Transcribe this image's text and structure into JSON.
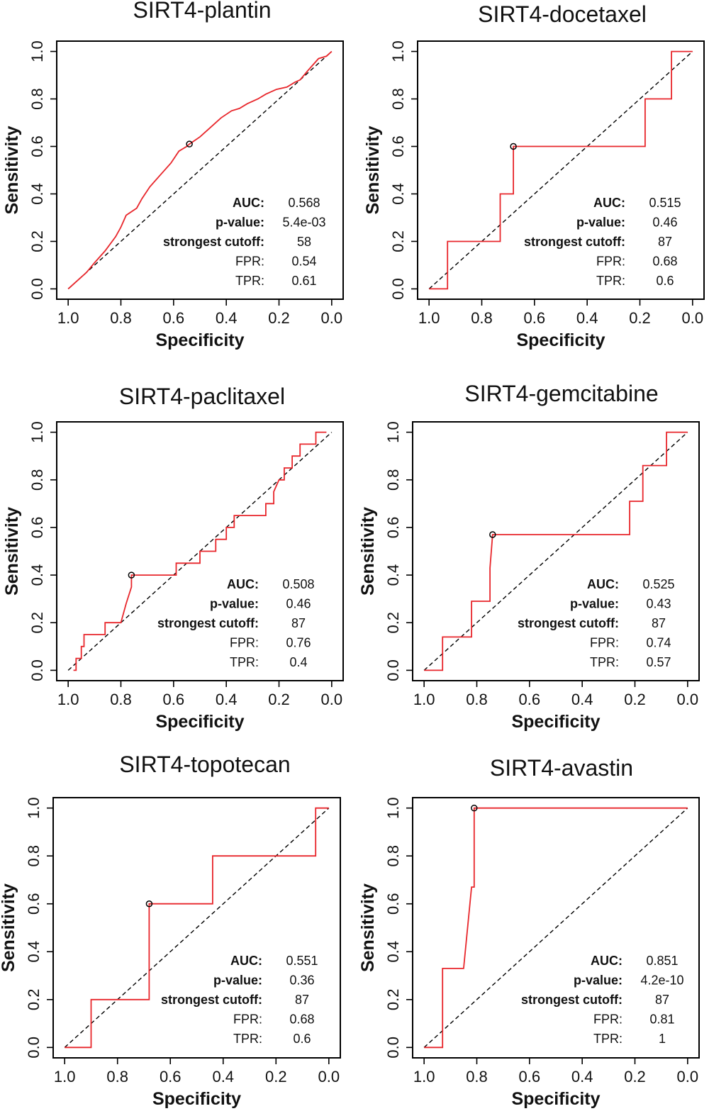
{
  "figure": {
    "description_colors": {
      "roc": "#e8262b",
      "diagonal": "#000000",
      "frame": "#000000"
    }
  },
  "chart_data": [
    {
      "type": "line",
      "title": "SIRT4-plantin",
      "xlabel": "Specificity",
      "ylabel": "Sensitivity",
      "xlim": [
        1.0,
        0.0
      ],
      "ylim": [
        0.0,
        1.0
      ],
      "xticks": [
        "1.0",
        "0.8",
        "0.6",
        "0.4",
        "0.2",
        "0.0"
      ],
      "yticks": [
        "0.0",
        "0.2",
        "0.4",
        "0.6",
        "0.8",
        "1.0"
      ],
      "series": [
        {
          "name": "ROC",
          "specificity": [
            1.0,
            0.97,
            0.93,
            0.9,
            0.86,
            0.82,
            0.8,
            0.78,
            0.74,
            0.72,
            0.69,
            0.65,
            0.61,
            0.58,
            0.55,
            0.54,
            0.5,
            0.46,
            0.42,
            0.38,
            0.35,
            0.32,
            0.28,
            0.25,
            0.21,
            0.17,
            0.14,
            0.12,
            0.09,
            0.05,
            0.02,
            0.0
          ],
          "sensitivity": [
            0.0,
            0.03,
            0.07,
            0.11,
            0.16,
            0.22,
            0.26,
            0.31,
            0.34,
            0.38,
            0.43,
            0.48,
            0.53,
            0.58,
            0.6,
            0.61,
            0.64,
            0.68,
            0.72,
            0.75,
            0.76,
            0.78,
            0.8,
            0.82,
            0.84,
            0.85,
            0.87,
            0.88,
            0.92,
            0.97,
            0.98,
            1.0
          ]
        }
      ],
      "cutoff_point": {
        "specificity": 0.54,
        "sensitivity": 0.61
      },
      "stats": [
        {
          "key": "AUC:",
          "value": "0.568",
          "bold": true
        },
        {
          "key": "p-value:",
          "value": "5.4e-03",
          "bold": true
        },
        {
          "key": "strongest cutoff:",
          "value": "58",
          "bold": true
        },
        {
          "key": "FPR:",
          "value": "0.54",
          "bold": false
        },
        {
          "key": "TPR:",
          "value": "0.61",
          "bold": false
        }
      ]
    },
    {
      "type": "line",
      "title": "SIRT4-docetaxel",
      "xlabel": "Specificity",
      "ylabel": "Sensitivity",
      "xlim": [
        1.0,
        0.0
      ],
      "ylim": [
        0.0,
        1.0
      ],
      "xticks": [
        "1.0",
        "0.8",
        "0.6",
        "0.4",
        "0.2",
        "0.0"
      ],
      "yticks": [
        "0.0",
        "0.2",
        "0.4",
        "0.6",
        "0.8",
        "1.0"
      ],
      "series": [
        {
          "name": "ROC",
          "specificity": [
            1.0,
            0.93,
            0.93,
            0.73,
            0.73,
            0.68,
            0.68,
            0.18,
            0.18,
            0.08,
            0.08,
            0.0
          ],
          "sensitivity": [
            0.0,
            0.0,
            0.2,
            0.2,
            0.4,
            0.4,
            0.6,
            0.6,
            0.8,
            0.8,
            1.0,
            1.0
          ]
        }
      ],
      "cutoff_point": {
        "specificity": 0.68,
        "sensitivity": 0.6
      },
      "stats": [
        {
          "key": "AUC:",
          "value": "0.515",
          "bold": true
        },
        {
          "key": "p-value:",
          "value": "0.46",
          "bold": true
        },
        {
          "key": "strongest cutoff:",
          "value": "87",
          "bold": true
        },
        {
          "key": "FPR:",
          "value": "0.68",
          "bold": false
        },
        {
          "key": "TPR:",
          "value": "0.6",
          "bold": false
        }
      ]
    },
    {
      "type": "line",
      "title": "SIRT4-paclitaxel",
      "xlabel": "Specificity",
      "ylabel": "Sensitivity",
      "xlim": [
        1.0,
        0.0
      ],
      "ylim": [
        0.0,
        1.0
      ],
      "xticks": [
        "1.0",
        "0.8",
        "0.6",
        "0.4",
        "0.2",
        "0.0"
      ],
      "yticks": [
        "0.0",
        "0.2",
        "0.4",
        "0.6",
        "0.8",
        "1.0"
      ],
      "series": [
        {
          "name": "ROC",
          "specificity": [
            0.98,
            0.97,
            0.97,
            0.95,
            0.95,
            0.94,
            0.94,
            0.86,
            0.86,
            0.8,
            0.78,
            0.76,
            0.76,
            0.59,
            0.59,
            0.5,
            0.5,
            0.44,
            0.44,
            0.4,
            0.4,
            0.37,
            0.37,
            0.25,
            0.25,
            0.22,
            0.22,
            0.2,
            0.18,
            0.18,
            0.15,
            0.15,
            0.12,
            0.12,
            0.06,
            0.06,
            0.05,
            0.04,
            0.02
          ],
          "sensitivity": [
            0.0,
            0.0,
            0.05,
            0.05,
            0.1,
            0.1,
            0.15,
            0.15,
            0.2,
            0.2,
            0.28,
            0.35,
            0.4,
            0.4,
            0.45,
            0.45,
            0.5,
            0.5,
            0.55,
            0.55,
            0.6,
            0.6,
            0.65,
            0.65,
            0.7,
            0.7,
            0.75,
            0.8,
            0.8,
            0.85,
            0.85,
            0.9,
            0.9,
            0.95,
            0.95,
            1.0,
            1.0,
            1.0,
            1.0
          ]
        }
      ],
      "cutoff_point": {
        "specificity": 0.76,
        "sensitivity": 0.4
      },
      "stats": [
        {
          "key": "AUC:",
          "value": "0.508",
          "bold": true
        },
        {
          "key": "p-value:",
          "value": "0.46",
          "bold": true
        },
        {
          "key": "strongest cutoff:",
          "value": "87",
          "bold": true
        },
        {
          "key": "FPR:",
          "value": "0.76",
          "bold": false
        },
        {
          "key": "TPR:",
          "value": "0.4",
          "bold": false
        }
      ]
    },
    {
      "type": "line",
      "title": "SIRT4-gemcitabine",
      "xlabel": "Specificity",
      "ylabel": "Sensitivity",
      "xlim": [
        1.0,
        0.0
      ],
      "ylim": [
        0.0,
        1.0
      ],
      "xticks": [
        "1.0",
        "0.8",
        "0.6",
        "0.4",
        "0.2",
        "0.0"
      ],
      "yticks": [
        "0.0",
        "0.2",
        "0.4",
        "0.6",
        "0.8",
        "1.0"
      ],
      "series": [
        {
          "name": "ROC",
          "specificity": [
            1.0,
            0.93,
            0.93,
            0.82,
            0.82,
            0.75,
            0.75,
            0.74,
            0.22,
            0.22,
            0.17,
            0.17,
            0.08,
            0.08,
            0.0
          ],
          "sensitivity": [
            0.0,
            0.0,
            0.14,
            0.14,
            0.29,
            0.29,
            0.43,
            0.57,
            0.57,
            0.71,
            0.71,
            0.86,
            0.86,
            1.0,
            1.0
          ]
        }
      ],
      "cutoff_point": {
        "specificity": 0.74,
        "sensitivity": 0.57
      },
      "stats": [
        {
          "key": "AUC:",
          "value": "0.525",
          "bold": true
        },
        {
          "key": "p-value:",
          "value": "0.43",
          "bold": true
        },
        {
          "key": "strongest cutoff:",
          "value": "87",
          "bold": true
        },
        {
          "key": "FPR:",
          "value": "0.74",
          "bold": false
        },
        {
          "key": "TPR:",
          "value": "0.57",
          "bold": false
        }
      ]
    },
    {
      "type": "line",
      "title": "SIRT4-topotecan",
      "xlabel": "Specificity",
      "ylabel": "Sensitivity",
      "xlim": [
        1.0,
        0.0
      ],
      "ylim": [
        0.0,
        1.0
      ],
      "xticks": [
        "1.0",
        "0.8",
        "0.6",
        "0.4",
        "0.2",
        "0.0"
      ],
      "yticks": [
        "0.0",
        "0.2",
        "0.4",
        "0.6",
        "0.8",
        "1.0"
      ],
      "series": [
        {
          "name": "ROC",
          "specificity": [
            1.0,
            0.9,
            0.9,
            0.68,
            0.68,
            0.44,
            0.44,
            0.05,
            0.05,
            0.0
          ],
          "sensitivity": [
            0.0,
            0.0,
            0.2,
            0.2,
            0.6,
            0.6,
            0.8,
            0.8,
            1.0,
            1.0
          ]
        }
      ],
      "cutoff_point": {
        "specificity": 0.68,
        "sensitivity": 0.6
      },
      "stats": [
        {
          "key": "AUC:",
          "value": "0.551",
          "bold": true
        },
        {
          "key": "p-value:",
          "value": "0.36",
          "bold": true
        },
        {
          "key": "strongest cutoff:",
          "value": "87",
          "bold": true
        },
        {
          "key": "FPR:",
          "value": "0.68",
          "bold": false
        },
        {
          "key": "TPR:",
          "value": "0.6",
          "bold": false
        }
      ]
    },
    {
      "type": "line",
      "title": "SIRT4-avastin",
      "xlabel": "Specificity",
      "ylabel": "Sensitivity",
      "xlim": [
        1.0,
        0.0
      ],
      "ylim": [
        0.0,
        1.0
      ],
      "xticks": [
        "1.0",
        "0.8",
        "0.6",
        "0.4",
        "0.2",
        "0.0"
      ],
      "yticks": [
        "0.0",
        "0.2",
        "0.4",
        "0.6",
        "0.8",
        "1.0"
      ],
      "series": [
        {
          "name": "ROC",
          "specificity": [
            1.0,
            0.93,
            0.93,
            0.85,
            0.82,
            0.81,
            0.81,
            0.0
          ],
          "sensitivity": [
            0.0,
            0.0,
            0.33,
            0.33,
            0.67,
            0.67,
            1.0,
            1.0
          ]
        }
      ],
      "cutoff_point": {
        "specificity": 0.81,
        "sensitivity": 1.0
      },
      "stats": [
        {
          "key": "AUC:",
          "value": "0.851",
          "bold": true
        },
        {
          "key": "p-value:",
          "value": "4.2e-10",
          "bold": true
        },
        {
          "key": "strongest cutoff:",
          "value": "87",
          "bold": true
        },
        {
          "key": "FPR:",
          "value": "0.81",
          "bold": false
        },
        {
          "key": "TPR:",
          "value": "1",
          "bold": false
        }
      ]
    }
  ]
}
